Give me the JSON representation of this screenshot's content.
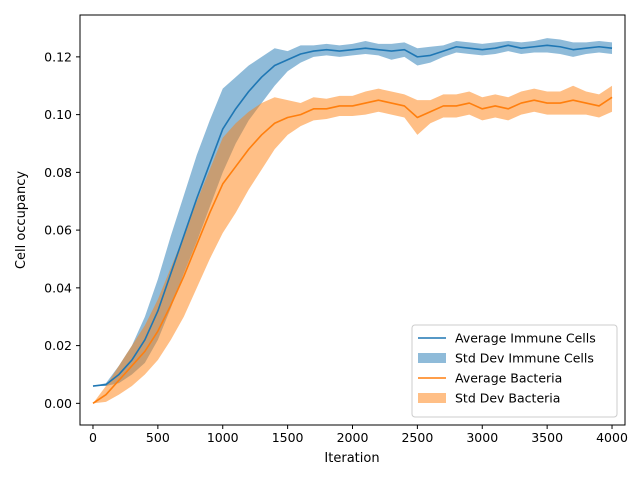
{
  "chart_data": {
    "type": "line",
    "title": "",
    "xlabel": "Iteration",
    "ylabel": "Cell occupancy",
    "xlim": [
      -100,
      4100
    ],
    "ylim": [
      -0.0075,
      0.1345
    ],
    "grid": false,
    "legend_position": "lower-right",
    "x_ticks": [
      0,
      500,
      1000,
      1500,
      2000,
      2500,
      3000,
      3500,
      4000
    ],
    "x_tick_labels": [
      "0",
      "500",
      "1000",
      "1500",
      "2000",
      "2500",
      "3000",
      "3500",
      "4000"
    ],
    "y_ticks": [
      0.0,
      0.02,
      0.04,
      0.06,
      0.08,
      0.1,
      0.12
    ],
    "y_tick_labels": [
      "0.00",
      "0.02",
      "0.04",
      "0.06",
      "0.08",
      "0.10",
      "0.12"
    ],
    "x": [
      0,
      100,
      200,
      300,
      400,
      500,
      600,
      700,
      800,
      900,
      1000,
      1100,
      1200,
      1300,
      1400,
      1500,
      1600,
      1700,
      1800,
      1900,
      2000,
      2100,
      2200,
      2300,
      2400,
      2500,
      2600,
      2700,
      2800,
      2900,
      3000,
      3100,
      3200,
      3300,
      3400,
      3500,
      3600,
      3700,
      3800,
      3900,
      4000
    ],
    "series": [
      {
        "name": "Average Immune Cells",
        "kind": "line",
        "color": "#1f77b4",
        "values": [
          0.006,
          0.0065,
          0.01,
          0.015,
          0.022,
          0.032,
          0.045,
          0.058,
          0.071,
          0.083,
          0.095,
          0.102,
          0.108,
          0.113,
          0.117,
          0.119,
          0.121,
          0.122,
          0.1225,
          0.122,
          0.1225,
          0.123,
          0.1225,
          0.122,
          0.1225,
          0.12,
          0.1205,
          0.122,
          0.1235,
          0.123,
          0.1225,
          0.123,
          0.124,
          0.123,
          0.1235,
          0.124,
          0.1235,
          0.1225,
          0.123,
          0.1235,
          0.123
        ]
      },
      {
        "name": "Std Dev Immune Cells",
        "kind": "band",
        "color": "#1f77b4",
        "lower": [
          0.006,
          0.006,
          0.007,
          0.01,
          0.014,
          0.022,
          0.033,
          0.045,
          0.056,
          0.068,
          0.08,
          0.09,
          0.098,
          0.104,
          0.11,
          0.115,
          0.118,
          0.12,
          0.1205,
          0.12,
          0.1205,
          0.121,
          0.1205,
          0.119,
          0.12,
          0.117,
          0.118,
          0.12,
          0.1215,
          0.121,
          0.1205,
          0.121,
          0.122,
          0.121,
          0.1215,
          0.1215,
          0.121,
          0.12,
          0.121,
          0.1215,
          0.121
        ],
        "upper": [
          0.006,
          0.007,
          0.013,
          0.02,
          0.03,
          0.043,
          0.058,
          0.072,
          0.086,
          0.098,
          0.109,
          0.113,
          0.117,
          0.12,
          0.123,
          0.122,
          0.124,
          0.124,
          0.1245,
          0.124,
          0.1245,
          0.1255,
          0.1245,
          0.1245,
          0.125,
          0.123,
          0.1235,
          0.124,
          0.1255,
          0.125,
          0.1245,
          0.125,
          0.1255,
          0.125,
          0.1255,
          0.1265,
          0.126,
          0.125,
          0.125,
          0.1255,
          0.125
        ]
      },
      {
        "name": "Average Bacteria",
        "kind": "line",
        "color": "#ff7f0e",
        "values": [
          0.0,
          0.003,
          0.008,
          0.013,
          0.018,
          0.025,
          0.034,
          0.044,
          0.055,
          0.066,
          0.076,
          0.082,
          0.088,
          0.093,
          0.097,
          0.099,
          0.1,
          0.102,
          0.102,
          0.103,
          0.103,
          0.104,
          0.105,
          0.104,
          0.103,
          0.099,
          0.101,
          0.103,
          0.103,
          0.104,
          0.102,
          0.103,
          0.102,
          0.104,
          0.105,
          0.104,
          0.104,
          0.105,
          0.104,
          0.103,
          0.106
        ]
      },
      {
        "name": "Std Dev Bacteria",
        "kind": "band",
        "color": "#ff7f0e",
        "lower": [
          0.0,
          0.0005,
          0.003,
          0.006,
          0.01,
          0.015,
          0.022,
          0.03,
          0.04,
          0.05,
          0.059,
          0.066,
          0.074,
          0.081,
          0.088,
          0.093,
          0.096,
          0.098,
          0.0985,
          0.0995,
          0.0995,
          0.1,
          0.101,
          0.1,
          0.099,
          0.093,
          0.097,
          0.099,
          0.099,
          0.1,
          0.098,
          0.099,
          0.098,
          0.1,
          0.101,
          0.1,
          0.1,
          0.1,
          0.1,
          0.099,
          0.101
        ],
        "upper": [
          0.0,
          0.006,
          0.013,
          0.02,
          0.027,
          0.036,
          0.047,
          0.058,
          0.07,
          0.081,
          0.092,
          0.097,
          0.101,
          0.104,
          0.106,
          0.105,
          0.104,
          0.106,
          0.1055,
          0.1065,
          0.1065,
          0.108,
          0.109,
          0.108,
          0.107,
          0.105,
          0.105,
          0.107,
          0.107,
          0.108,
          0.106,
          0.107,
          0.106,
          0.108,
          0.109,
          0.108,
          0.108,
          0.11,
          0.108,
          0.107,
          0.11
        ]
      }
    ]
  }
}
